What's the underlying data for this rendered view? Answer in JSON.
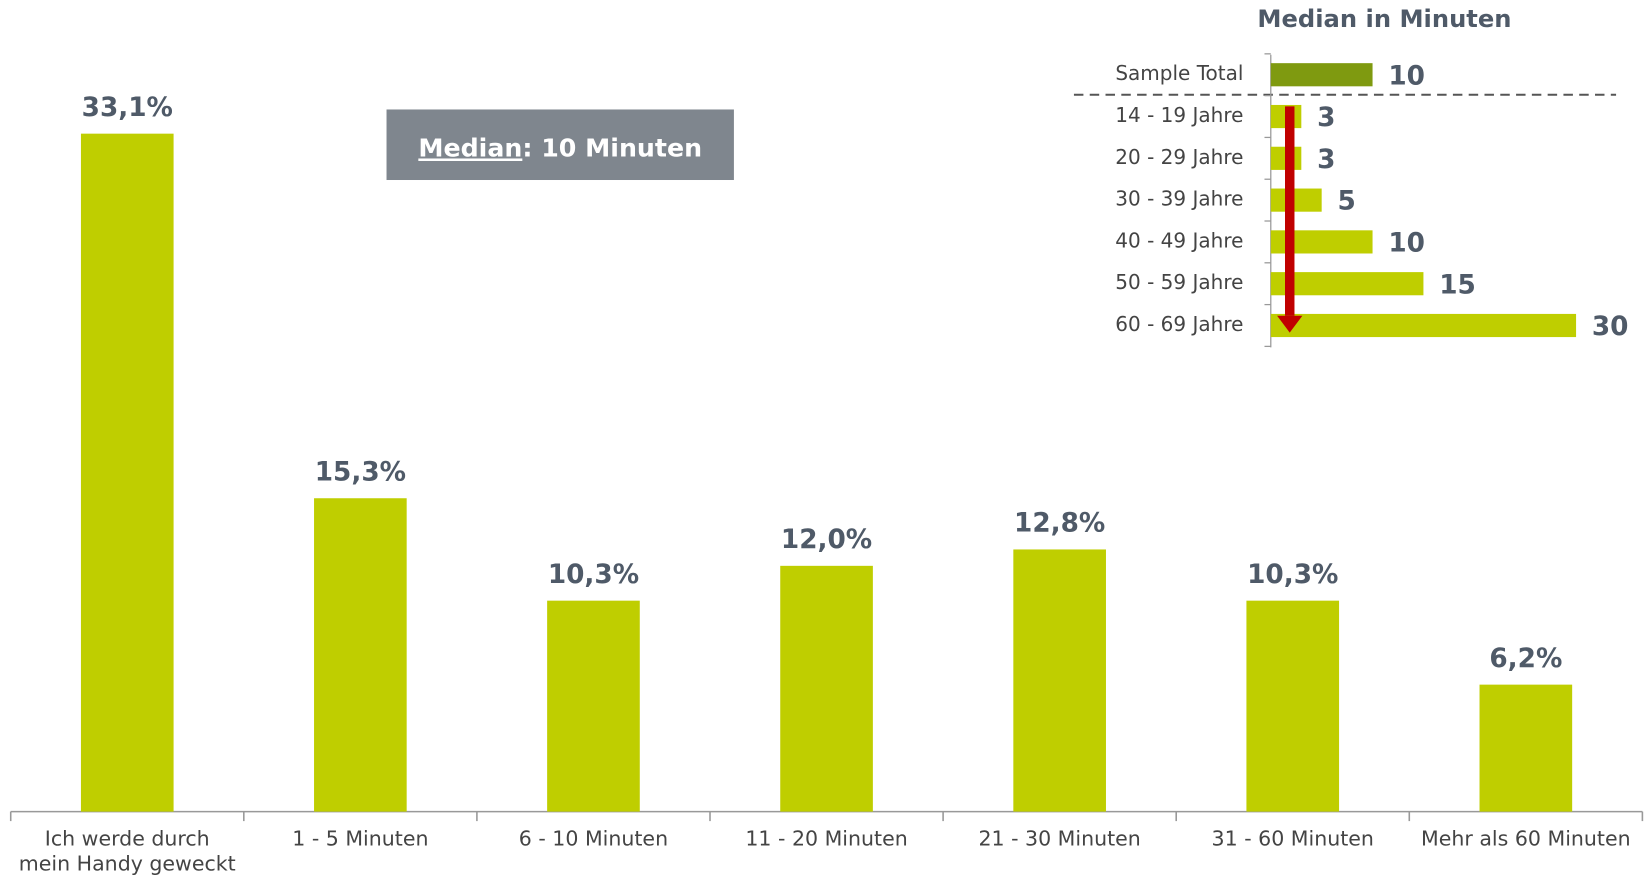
{
  "chart_data": [
    {
      "type": "bar",
      "categories": [
        "Ich werde durch\nmein Handy geweckt",
        "1 - 5 Minuten",
        "6 - 10 Minuten",
        "11 - 20 Minuten",
        "21 - 30 Minuten",
        "31 - 60 Minuten",
        "Mehr als 60 Minuten"
      ],
      "values": [
        33.1,
        15.3,
        10.3,
        12.0,
        12.8,
        10.3,
        6.2
      ],
      "value_labels": [
        "33,1%",
        "15,3%",
        "10,3%",
        "12,0%",
        "12,8%",
        "10,3%",
        "6,2%"
      ],
      "color": "#bfce00",
      "ylim": [
        0,
        35
      ],
      "annotation": {
        "label": "Median",
        "text": ": 10 Minuten"
      }
    },
    {
      "type": "hbar",
      "title": "Median in Minuten",
      "categories": [
        "Sample Total",
        "14 - 19 Jahre",
        "20 - 29 Jahre",
        "30 - 39 Jahre",
        "40 - 49 Jahre",
        "50 - 59 Jahre",
        "60 - 69 Jahre"
      ],
      "values": [
        10,
        3,
        3,
        5,
        10,
        15,
        30
      ],
      "colors": [
        "#7f9a10",
        "#bfce00",
        "#bfce00",
        "#bfce00",
        "#bfce00",
        "#bfce00",
        "#bfce00"
      ],
      "xlim": [
        0,
        30
      ]
    }
  ]
}
